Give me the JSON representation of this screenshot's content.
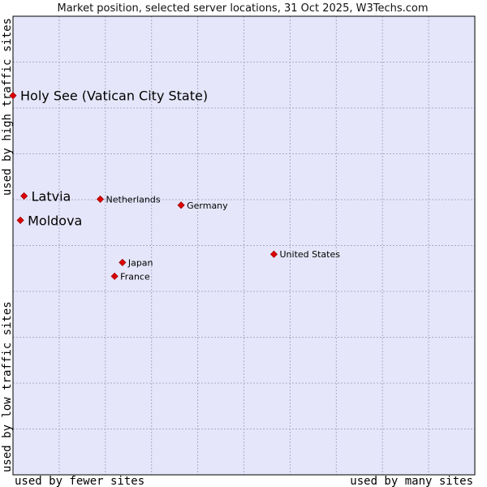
{
  "chart_data": {
    "type": "scatter",
    "title": "Market position, selected server locations, 31 Oct 2025, W3Techs.com",
    "xlabel_left": "used by fewer sites",
    "xlabel_right": "used by many sites",
    "ylabel_bottom": "used by low traffic sites",
    "ylabel_top": "used by high traffic sites",
    "xlim": [
      0,
      100
    ],
    "ylim": [
      0,
      100
    ],
    "grid": true,
    "colors": {
      "plot_bg": "#e6e6fa",
      "grid": "#a9a9c8",
      "frame": "#000000",
      "marker": "#e00000",
      "marker_edge": "#990000"
    },
    "points": [
      {
        "label": "Holy See (Vatican City State)",
        "x": 0,
        "y": 82.7,
        "emphasis": true
      },
      {
        "label": "Latvia",
        "x": 2.4,
        "y": 60.8,
        "emphasis": true
      },
      {
        "label": "Moldova",
        "x": 1.6,
        "y": 55.5,
        "emphasis": true
      },
      {
        "label": "Netherlands",
        "x": 18.9,
        "y": 60.1,
        "emphasis": false
      },
      {
        "label": "Germany",
        "x": 36.4,
        "y": 58.8,
        "emphasis": false
      },
      {
        "label": "United States",
        "x": 56.5,
        "y": 48.1,
        "emphasis": false
      },
      {
        "label": "Japan",
        "x": 23.7,
        "y": 46.3,
        "emphasis": false
      },
      {
        "label": "France",
        "x": 22.0,
        "y": 43.3,
        "emphasis": false
      }
    ]
  }
}
